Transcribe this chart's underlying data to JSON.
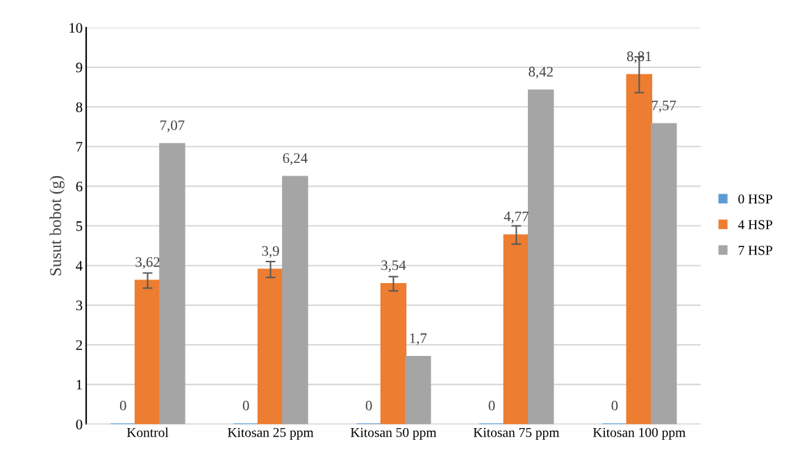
{
  "chart_data": {
    "type": "bar",
    "ylabel": "Susut bobot (g)",
    "categories": [
      "Kontrol",
      "Kitosan 25 ppm",
      "Kitosan 50 ppm",
      "Kitosan 75 ppm",
      "Kitosan 100 ppm"
    ],
    "series": [
      {
        "name": "0 HSP",
        "color": "#5b9bd5",
        "values": [
          0,
          0,
          0,
          0,
          0
        ],
        "value_labels": [
          "0",
          "0",
          "0",
          "0",
          "0"
        ]
      },
      {
        "name": "4 HSP",
        "color": "#ed7d31",
        "values": [
          3.62,
          3.9,
          3.54,
          4.77,
          8.81
        ],
        "value_labels": [
          "3,62",
          "3,9",
          "3,54",
          "4,77",
          "8,81"
        ],
        "errors": [
          0.19,
          0.2,
          0.18,
          0.23,
          0.45
        ]
      },
      {
        "name": "7 HSP",
        "color": "#a5a5a5",
        "values": [
          7.07,
          6.24,
          1.7,
          8.42,
          7.57
        ],
        "value_labels": [
          "7,07",
          "6,24",
          "1,7",
          "8,42",
          "7,57"
        ]
      }
    ],
    "ylim": [
      0,
      10
    ],
    "yticks": [
      0,
      1,
      2,
      3,
      4,
      5,
      6,
      7,
      8,
      9,
      10
    ],
    "grid": "y",
    "legend": "right"
  }
}
